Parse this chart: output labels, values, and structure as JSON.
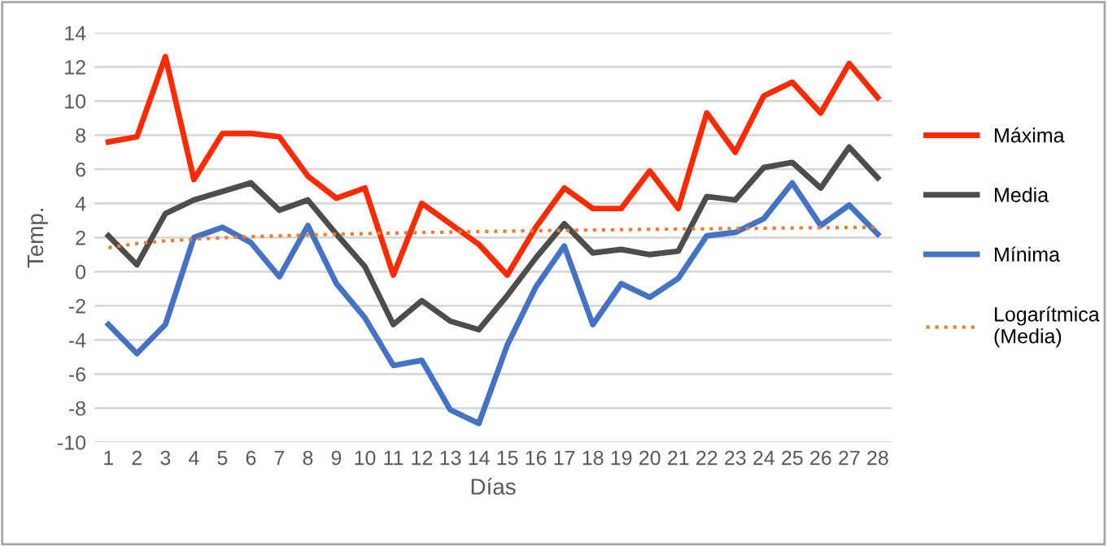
{
  "chart_data": {
    "type": "line",
    "xlabel": "Días",
    "ylabel": "Temp.",
    "categories": [
      "1",
      "2",
      "3",
      "4",
      "5",
      "6",
      "7",
      "8",
      "9",
      "10",
      "11",
      "12",
      "13",
      "14",
      "15",
      "16",
      "17",
      "18",
      "19",
      "20",
      "21",
      "22",
      "23",
      "24",
      "25",
      "26",
      "27",
      "28"
    ],
    "ylim": [
      -10,
      14
    ],
    "yticks": [
      -10,
      -8,
      -6,
      -4,
      -2,
      0,
      2,
      4,
      6,
      8,
      10,
      12,
      14
    ],
    "grid": "y",
    "legend": "right",
    "marker": "none",
    "series": [
      {
        "name": "Máxima",
        "color": "#ff2a00",
        "values": [
          7.6,
          7.9,
          12.6,
          5.4,
          8.1,
          8.1,
          7.9,
          5.6,
          4.3,
          4.9,
          -0.2,
          4.0,
          2.8,
          1.6,
          -0.2,
          2.6,
          4.9,
          3.7,
          3.7,
          5.9,
          3.7,
          9.3,
          7.0,
          10.3,
          11.1,
          9.3,
          12.2,
          10.2
        ]
      },
      {
        "name": "Media",
        "color": "#4d4d4d",
        "values": [
          2.1,
          0.4,
          3.4,
          4.2,
          4.7,
          5.2,
          3.6,
          4.2,
          2.2,
          0.3,
          -3.1,
          -1.7,
          -2.9,
          -3.4,
          -1.4,
          0.8,
          2.8,
          1.1,
          1.3,
          1.0,
          1.2,
          4.4,
          4.2,
          6.1,
          6.4,
          4.9,
          7.3,
          5.5
        ]
      },
      {
        "name": "Mínima",
        "color": "#4472c4",
        "values": [
          -3.1,
          -4.8,
          -3.1,
          2.0,
          2.6,
          1.7,
          -0.3,
          2.7,
          -0.7,
          -2.7,
          -5.5,
          -5.2,
          -8.1,
          -8.9,
          -4.3,
          -0.9,
          1.5,
          -3.1,
          -0.7,
          -1.5,
          -0.4,
          2.1,
          2.3,
          3.1,
          5.2,
          2.7,
          3.9,
          2.2
        ]
      },
      {
        "name": "Logarítmica\n(Media)",
        "color": "#ed7d31",
        "line_style": "dotted",
        "values": [
          1.4,
          1.65,
          1.8,
          1.9,
          1.98,
          2.05,
          2.1,
          2.15,
          2.19,
          2.23,
          2.26,
          2.29,
          2.32,
          2.35,
          2.37,
          2.4,
          2.42,
          2.44,
          2.46,
          2.48,
          2.5,
          2.51,
          2.53,
          2.54,
          2.56,
          2.57,
          2.59,
          2.6
        ]
      }
    ]
  }
}
